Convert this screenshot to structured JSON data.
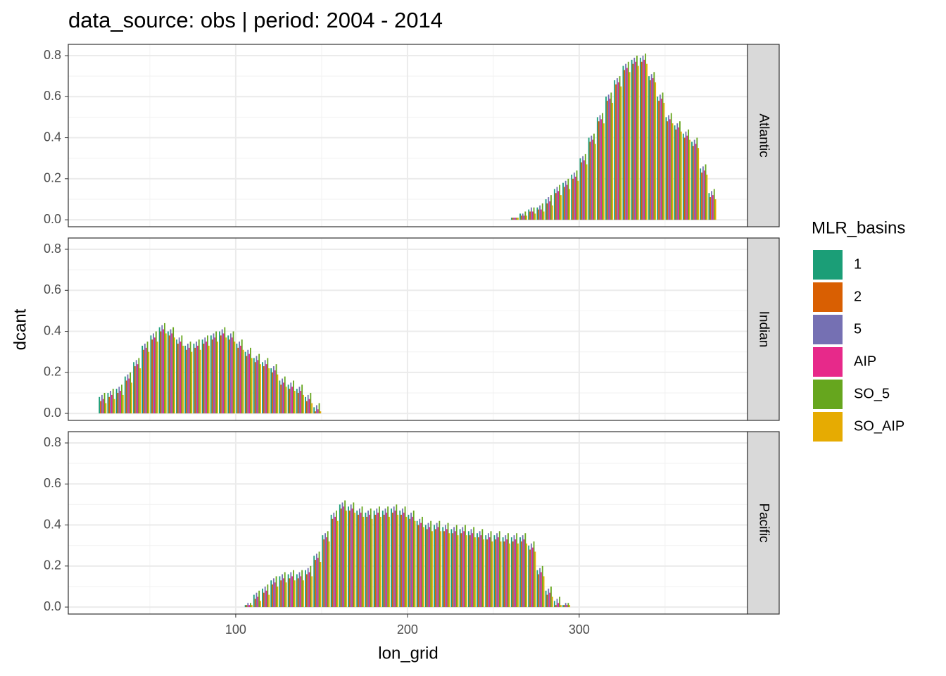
{
  "chart_data": {
    "type": "bar",
    "title": "data_source: obs | period: 2004 - 2014",
    "xlabel": "lon_grid",
    "ylabel": "dcant",
    "legend_title": "MLR_basins",
    "xlim": [
      2.5,
      398
    ],
    "xticks": [
      100,
      200,
      300
    ],
    "x_minor_ticks": [
      50,
      150,
      250,
      350
    ],
    "ylim": [
      -0.034,
      0.855
    ],
    "yticks": [
      {
        "value": 0,
        "label": "0.0"
      },
      0.2,
      0.4,
      0.6,
      0.8
    ],
    "y_minor_ticks": [
      0.1,
      0.3,
      0.5,
      0.7
    ],
    "grid": true,
    "series": [
      {
        "name": "1",
        "color": "#1B9E77"
      },
      {
        "name": "2",
        "color": "#D95F02"
      },
      {
        "name": "5",
        "color": "#7570B3"
      },
      {
        "name": "AIP",
        "color": "#E7298A"
      },
      {
        "name": "SO_5",
        "color": "#66A61E"
      },
      {
        "name": "SO_AIP",
        "color": "#E6AB02"
      }
    ],
    "facets": [
      {
        "label": "Atlantic",
        "x": [
          262.5,
          267.5,
          272.5,
          277.5,
          282.5,
          287.5,
          292.5,
          297.5,
          302.5,
          307.5,
          312.5,
          317.5,
          322.5,
          327.5,
          332.5,
          337.5,
          342.5,
          347.5,
          352.5,
          357.5,
          362.5,
          367.5,
          372.5,
          377.5
        ],
        "values": [
          [
            0.01,
            0.03,
            0.05,
            0.06,
            0.1,
            0.15,
            0.18,
            0.22,
            0.3,
            0.4,
            0.5,
            0.6,
            0.68,
            0.75,
            0.78,
            0.79,
            0.7,
            0.6,
            0.5,
            0.46,
            0.42,
            0.38,
            0.25,
            0.13
          ],
          [
            0.01,
            0.02,
            0.04,
            0.05,
            0.08,
            0.13,
            0.16,
            0.2,
            0.28,
            0.38,
            0.48,
            0.58,
            0.66,
            0.73,
            0.76,
            0.77,
            0.68,
            0.58,
            0.48,
            0.44,
            0.4,
            0.36,
            0.23,
            0.11
          ],
          [
            0.01,
            0.03,
            0.06,
            0.07,
            0.11,
            0.16,
            0.19,
            0.23,
            0.31,
            0.41,
            0.51,
            0.61,
            0.69,
            0.76,
            0.79,
            0.8,
            0.71,
            0.61,
            0.51,
            0.47,
            0.43,
            0.39,
            0.26,
            0.14
          ],
          [
            0.01,
            0.02,
            0.04,
            0.05,
            0.09,
            0.14,
            0.17,
            0.21,
            0.29,
            0.39,
            0.49,
            0.59,
            0.67,
            0.74,
            0.77,
            0.78,
            0.69,
            0.59,
            0.49,
            0.45,
            0.41,
            0.37,
            0.24,
            0.12
          ],
          [
            0.01,
            0.04,
            0.06,
            0.08,
            0.12,
            0.17,
            0.2,
            0.24,
            0.32,
            0.42,
            0.52,
            0.62,
            0.7,
            0.77,
            0.8,
            0.81,
            0.72,
            0.62,
            0.52,
            0.48,
            0.44,
            0.4,
            0.27,
            0.15
          ],
          [
            0.01,
            0.02,
            0.03,
            0.04,
            0.07,
            0.12,
            0.15,
            0.19,
            0.27,
            0.37,
            0.47,
            0.57,
            0.65,
            0.72,
            0.75,
            0.76,
            0.67,
            0.57,
            0.47,
            0.43,
            0.39,
            0.35,
            0.22,
            0.1
          ]
        ]
      },
      {
        "label": "Indian",
        "x": [
          22.5,
          27.5,
          32.5,
          37.5,
          42.5,
          47.5,
          52.5,
          57.5,
          62.5,
          67.5,
          72.5,
          77.5,
          82.5,
          87.5,
          92.5,
          97.5,
          102.5,
          107.5,
          112.5,
          117.5,
          122.5,
          127.5,
          132.5,
          137.5,
          142.5,
          147.5
        ],
        "values": [
          [
            0.08,
            0.1,
            0.12,
            0.18,
            0.25,
            0.33,
            0.38,
            0.42,
            0.4,
            0.36,
            0.33,
            0.34,
            0.36,
            0.38,
            0.4,
            0.38,
            0.34,
            0.3,
            0.27,
            0.25,
            0.22,
            0.16,
            0.14,
            0.12,
            0.08,
            0.03
          ],
          [
            0.06,
            0.08,
            0.1,
            0.16,
            0.23,
            0.31,
            0.36,
            0.4,
            0.38,
            0.34,
            0.31,
            0.32,
            0.34,
            0.36,
            0.38,
            0.36,
            0.32,
            0.28,
            0.25,
            0.23,
            0.2,
            0.14,
            0.12,
            0.1,
            0.06,
            0.01
          ],
          [
            0.09,
            0.11,
            0.13,
            0.19,
            0.26,
            0.34,
            0.39,
            0.43,
            0.41,
            0.37,
            0.34,
            0.35,
            0.37,
            0.39,
            0.41,
            0.39,
            0.35,
            0.31,
            0.28,
            0.26,
            0.23,
            0.17,
            0.15,
            0.13,
            0.09,
            0.04
          ],
          [
            0.07,
            0.09,
            0.11,
            0.17,
            0.24,
            0.32,
            0.37,
            0.41,
            0.39,
            0.35,
            0.32,
            0.33,
            0.35,
            0.37,
            0.39,
            0.37,
            0.33,
            0.29,
            0.26,
            0.24,
            0.21,
            0.15,
            0.13,
            0.11,
            0.07,
            0.02
          ],
          [
            0.1,
            0.12,
            0.14,
            0.2,
            0.27,
            0.35,
            0.4,
            0.44,
            0.42,
            0.38,
            0.35,
            0.36,
            0.38,
            0.4,
            0.42,
            0.4,
            0.36,
            0.32,
            0.29,
            0.27,
            0.24,
            0.18,
            0.16,
            0.14,
            0.1,
            0.05
          ],
          [
            0.05,
            0.07,
            0.09,
            0.15,
            0.22,
            0.3,
            0.35,
            0.39,
            0.37,
            0.33,
            0.3,
            0.31,
            0.33,
            0.35,
            0.37,
            0.35,
            0.31,
            0.27,
            0.24,
            0.22,
            0.19,
            0.13,
            0.11,
            0.09,
            0.05,
            0.01
          ]
        ]
      },
      {
        "label": "Pacific",
        "x": [
          107.5,
          112.5,
          117.5,
          122.5,
          127.5,
          132.5,
          137.5,
          142.5,
          147.5,
          152.5,
          157.5,
          162.5,
          167.5,
          172.5,
          177.5,
          182.5,
          187.5,
          192.5,
          197.5,
          202.5,
          207.5,
          212.5,
          217.5,
          222.5,
          227.5,
          232.5,
          237.5,
          242.5,
          247.5,
          252.5,
          257.5,
          262.5,
          267.5,
          272.5,
          277.5,
          282.5,
          287.5,
          292.5
        ],
        "values": [
          [
            0.01,
            0.06,
            0.09,
            0.13,
            0.15,
            0.16,
            0.16,
            0.18,
            0.25,
            0.35,
            0.45,
            0.5,
            0.49,
            0.47,
            0.46,
            0.47,
            0.47,
            0.48,
            0.47,
            0.45,
            0.42,
            0.4,
            0.4,
            0.39,
            0.38,
            0.38,
            0.37,
            0.36,
            0.35,
            0.35,
            0.34,
            0.34,
            0.34,
            0.3,
            0.18,
            0.08,
            0.03,
            0.01
          ],
          [
            0.01,
            0.04,
            0.07,
            0.11,
            0.13,
            0.14,
            0.14,
            0.16,
            0.23,
            0.33,
            0.43,
            0.48,
            0.47,
            0.45,
            0.44,
            0.45,
            0.45,
            0.46,
            0.45,
            0.43,
            0.4,
            0.38,
            0.38,
            0.37,
            0.36,
            0.36,
            0.35,
            0.34,
            0.33,
            0.33,
            0.32,
            0.32,
            0.32,
            0.28,
            0.16,
            0.06,
            0.01,
            0.01
          ],
          [
            0.02,
            0.07,
            0.1,
            0.14,
            0.16,
            0.17,
            0.17,
            0.19,
            0.26,
            0.36,
            0.46,
            0.51,
            0.5,
            0.48,
            0.47,
            0.48,
            0.48,
            0.49,
            0.48,
            0.46,
            0.43,
            0.41,
            0.41,
            0.4,
            0.39,
            0.39,
            0.38,
            0.37,
            0.36,
            0.36,
            0.35,
            0.35,
            0.35,
            0.31,
            0.19,
            0.09,
            0.04,
            0.02
          ],
          [
            0.01,
            0.05,
            0.08,
            0.12,
            0.14,
            0.15,
            0.15,
            0.17,
            0.24,
            0.34,
            0.44,
            0.49,
            0.48,
            0.46,
            0.45,
            0.46,
            0.46,
            0.47,
            0.46,
            0.44,
            0.41,
            0.39,
            0.39,
            0.38,
            0.37,
            0.37,
            0.36,
            0.35,
            0.34,
            0.34,
            0.33,
            0.33,
            0.33,
            0.29,
            0.17,
            0.07,
            0.02,
            0.01
          ],
          [
            0.02,
            0.08,
            0.11,
            0.15,
            0.17,
            0.18,
            0.18,
            0.2,
            0.27,
            0.37,
            0.47,
            0.52,
            0.51,
            0.49,
            0.48,
            0.49,
            0.49,
            0.5,
            0.49,
            0.47,
            0.44,
            0.42,
            0.42,
            0.41,
            0.4,
            0.4,
            0.39,
            0.38,
            0.37,
            0.37,
            0.36,
            0.36,
            0.36,
            0.32,
            0.2,
            0.1,
            0.05,
            0.02
          ],
          [
            0.01,
            0.03,
            0.06,
            0.1,
            0.12,
            0.13,
            0.13,
            0.15,
            0.22,
            0.32,
            0.42,
            0.47,
            0.46,
            0.44,
            0.43,
            0.44,
            0.44,
            0.45,
            0.44,
            0.42,
            0.39,
            0.37,
            0.37,
            0.36,
            0.35,
            0.35,
            0.34,
            0.33,
            0.32,
            0.32,
            0.31,
            0.31,
            0.31,
            0.27,
            0.15,
            0.05,
            0.01,
            0.01
          ]
        ]
      }
    ]
  }
}
